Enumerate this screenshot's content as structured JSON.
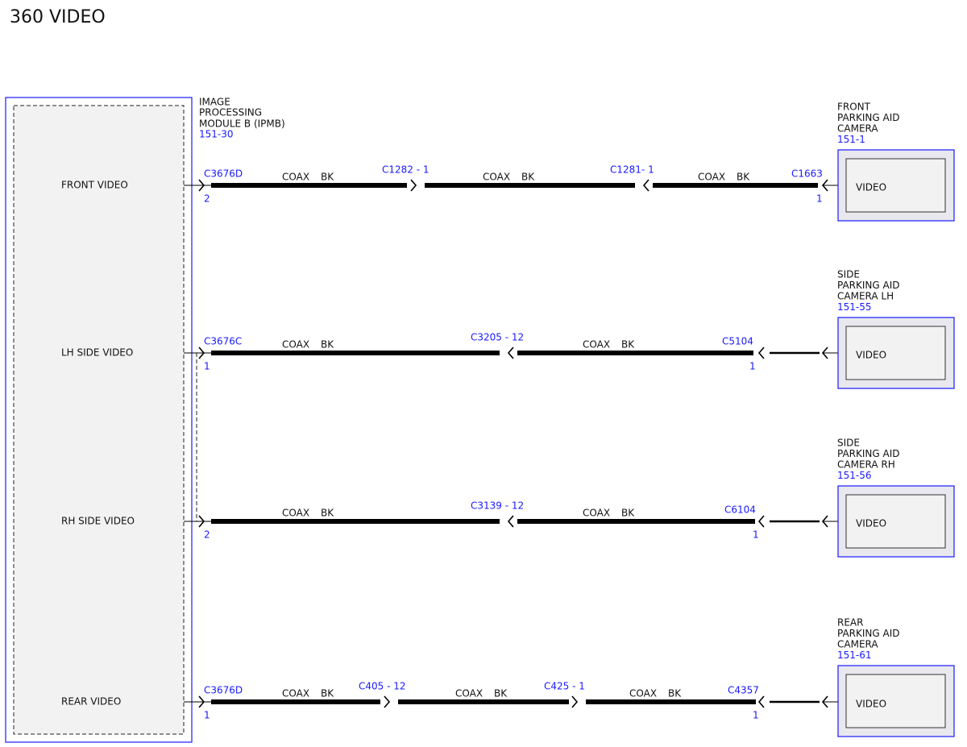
{
  "title": "360 VIDEO",
  "module": {
    "name": [
      "IMAGE",
      "PROCESSING",
      "MODULE B (IPMB)"
    ],
    "ref": "151-30"
  },
  "rows": [
    {
      "pin_label": "FRONT VIDEO",
      "start": {
        "connector": "C3676D",
        "pin": "2"
      },
      "inline": [
        "C1282 - 1",
        "C1281- 1"
      ],
      "wires": [
        {
          "type": "COAX",
          "color": "BK"
        },
        {
          "type": "COAX",
          "color": "BK"
        },
        {
          "type": "COAX",
          "color": "BK"
        }
      ],
      "end": {
        "connector": "C1663",
        "pin": "1"
      },
      "camera": {
        "name": [
          "FRONT",
          "PARKING AID",
          "CAMERA"
        ],
        "ref": "151-1",
        "signal": "VIDEO"
      }
    },
    {
      "pin_label": "LH SIDE VIDEO",
      "start": {
        "connector": "C3676C",
        "pin": "1"
      },
      "inline": [
        "C3205 - 12"
      ],
      "wires": [
        {
          "type": "COAX",
          "color": "BK"
        },
        {
          "type": "COAX",
          "color": "BK"
        }
      ],
      "end": {
        "connector": "C5104",
        "pin": "1"
      },
      "camera": {
        "name": [
          "SIDE",
          "PARKING AID",
          "CAMERA LH"
        ],
        "ref": "151-55",
        "signal": "VIDEO"
      }
    },
    {
      "pin_label": "RH SIDE VIDEO",
      "start": {
        "pin": "2"
      },
      "inline": [
        "C3139 - 12"
      ],
      "wires": [
        {
          "type": "COAX",
          "color": "BK"
        },
        {
          "type": "COAX",
          "color": "BK"
        }
      ],
      "end": {
        "connector": "C6104",
        "pin": "1"
      },
      "camera": {
        "name": [
          "SIDE",
          "PARKING AID",
          "CAMERA RH"
        ],
        "ref": "151-56",
        "signal": "VIDEO"
      }
    },
    {
      "pin_label": "REAR VIDEO",
      "start": {
        "connector": "C3676D",
        "pin": "1"
      },
      "inline": [
        "C405 - 12",
        "C425 - 1"
      ],
      "wires": [
        {
          "type": "COAX",
          "color": "BK"
        },
        {
          "type": "COAX",
          "color": "BK"
        },
        {
          "type": "COAX",
          "color": "BK"
        }
      ],
      "end": {
        "connector": "C4357",
        "pin": "1"
      },
      "camera": {
        "name": [
          "REAR",
          "PARKING AID",
          "CAMERA"
        ],
        "ref": "151-61",
        "signal": "VIDEO"
      }
    }
  ]
}
